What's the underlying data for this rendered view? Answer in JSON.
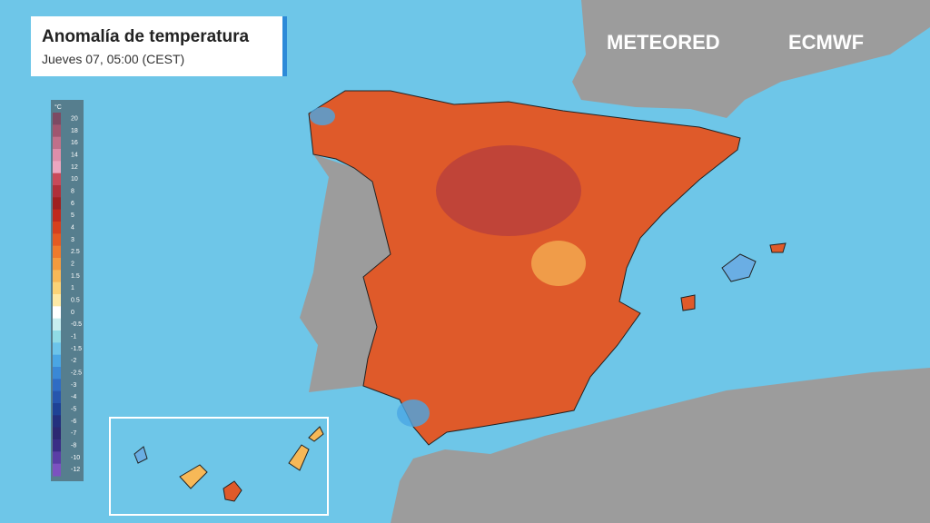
{
  "header": {
    "title": "Anomalía de temperatura",
    "subtitle": "Jueves 07, 05:00 (CEST)"
  },
  "brands": [
    "METEORED",
    "ECMWF"
  ],
  "legend": {
    "unit": "°C",
    "ticks": [
      20,
      18,
      16,
      14,
      12,
      10,
      8,
      6,
      5,
      4,
      3,
      2.5,
      2,
      1.5,
      1,
      0.5,
      0,
      -0.5,
      -1,
      -1.5,
      -2,
      -2.5,
      -3,
      -4,
      -5,
      -6,
      -7,
      -8,
      -10,
      -12
    ],
    "colors": [
      "#7d4a63",
      "#a0566f",
      "#c0708a",
      "#dd8eaa",
      "#eca6c0",
      "#c84a5a",
      "#b0303a",
      "#a02020",
      "#c02a1e",
      "#d6401e",
      "#e45a22",
      "#ee7a2c",
      "#f39a3e",
      "#f7b857",
      "#fbd377",
      "#fde9a6",
      "#ffffff",
      "#c8eef0",
      "#90dbe6",
      "#6cc4ea",
      "#4aa6e4",
      "#3a88d6",
      "#2f6cc4",
      "#2656ae",
      "#1e4296",
      "#23307e",
      "#2c2872",
      "#3a2e86",
      "#5a3ea6",
      "#7c52c0"
    ]
  }
}
